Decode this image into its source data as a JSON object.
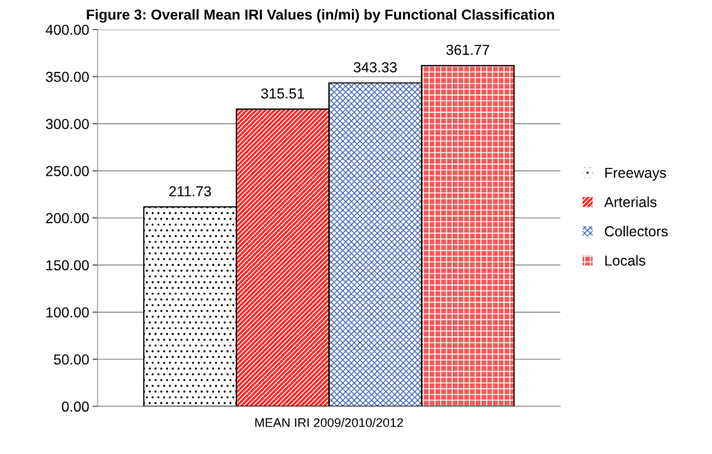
{
  "chart_data": {
    "type": "bar",
    "title": "Figure 3: Overall Mean IRI Values (in/mi) by Functional Classification",
    "categories": [
      "MEAN IRI 2009/2010/2012"
    ],
    "series": [
      {
        "name": "Freeways",
        "color": "#000000",
        "values": [
          211.73
        ]
      },
      {
        "name": "Arterials",
        "color": "#ff2a2a",
        "values": [
          315.51
        ]
      },
      {
        "name": "Collectors",
        "color": "#4a6fb5",
        "values": [
          343.33
        ]
      },
      {
        "name": "Locals",
        "color": "#f05a5a",
        "values": [
          361.77
        ]
      }
    ],
    "ylim": [
      0,
      400
    ],
    "yticks": [
      {
        "value": 0,
        "label": "0.00"
      },
      {
        "value": 50,
        "label": "50.00"
      },
      {
        "value": 100,
        "label": "100.00"
      },
      {
        "value": 150,
        "label": "150.00"
      },
      {
        "value": 200,
        "label": "200.00"
      },
      {
        "value": 250,
        "label": "250.00"
      },
      {
        "value": 300,
        "label": "300.00"
      },
      {
        "value": 350,
        "label": "350.00"
      },
      {
        "value": 400,
        "label": "400.00"
      }
    ],
    "grid": "y",
    "legend": "right",
    "data_labels": true
  }
}
